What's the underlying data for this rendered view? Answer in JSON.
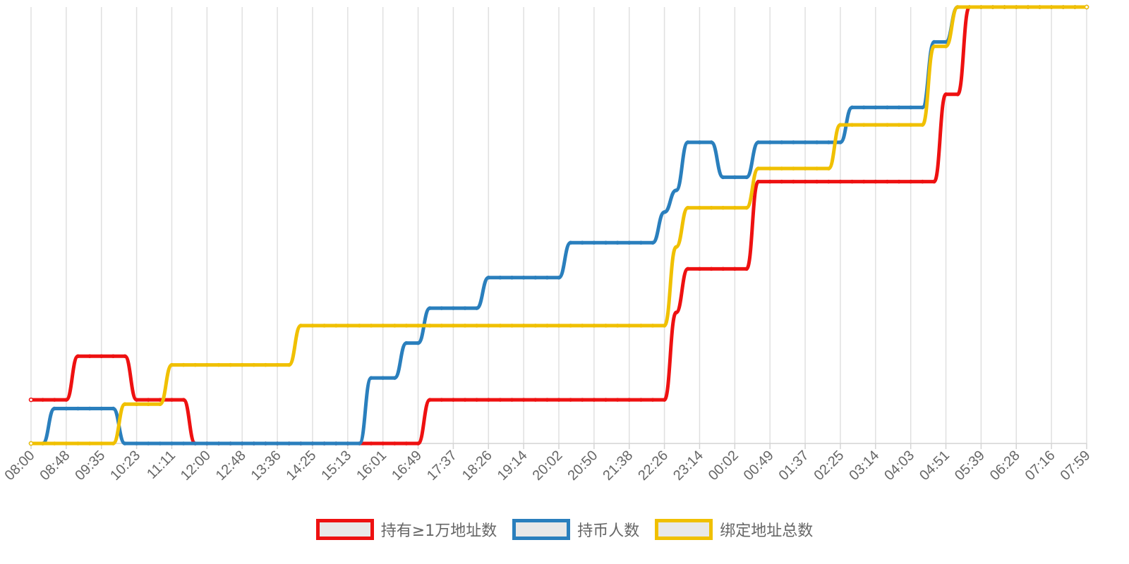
{
  "chart_data": {
    "type": "line",
    "title": "",
    "xlabel": "",
    "ylabel": "",
    "grid": "vertical",
    "y_axis_labels_shown": false,
    "ylim": [
      0,
      100
    ],
    "legend_position": "bottom-center",
    "x_tick_labels": [
      "08:00",
      "08:48",
      "09:35",
      "10:23",
      "11:11",
      "12:00",
      "12:48",
      "13:36",
      "14:25",
      "15:13",
      "16:01",
      "16:49",
      "17:37",
      "18:26",
      "19:14",
      "20:02",
      "20:50",
      "21:38",
      "22:26",
      "23:14",
      "00:02",
      "00:49",
      "01:37",
      "02:25",
      "03:14",
      "04:03",
      "04:51",
      "05:39",
      "06:28",
      "07:16",
      "07:59"
    ],
    "series": [
      {
        "name": "持有≥1万地址数",
        "color": "#ee1111",
        "points": [
          [
            0,
            10
          ],
          [
            3,
            10
          ],
          [
            4,
            20
          ],
          [
            8,
            20
          ],
          [
            9,
            10
          ],
          [
            13,
            10
          ],
          [
            14,
            0
          ],
          [
            33,
            0
          ],
          [
            34,
            10
          ],
          [
            54,
            10
          ],
          [
            55,
            30
          ],
          [
            56,
            40
          ],
          [
            61,
            40
          ],
          [
            62,
            60
          ],
          [
            77,
            60
          ],
          [
            78,
            80
          ],
          [
            79,
            80
          ],
          [
            80,
            100
          ],
          [
            90,
            100
          ]
        ]
      },
      {
        "name": "持币人数",
        "color": "#2a7fbd",
        "points": [
          [
            0,
            0
          ],
          [
            1,
            0
          ],
          [
            2,
            8
          ],
          [
            7,
            8
          ],
          [
            8,
            0
          ],
          [
            14,
            0
          ],
          [
            28,
            0
          ],
          [
            29,
            15
          ],
          [
            31,
            15
          ],
          [
            32,
            23
          ],
          [
            33,
            23
          ],
          [
            34,
            31
          ],
          [
            38,
            31
          ],
          [
            39,
            38
          ],
          [
            45,
            38
          ],
          [
            46,
            46
          ],
          [
            53,
            46
          ],
          [
            54,
            53
          ],
          [
            55,
            58
          ],
          [
            56,
            69
          ],
          [
            58,
            69
          ],
          [
            59,
            61
          ],
          [
            61,
            61
          ],
          [
            62,
            69
          ],
          [
            69,
            69
          ],
          [
            70,
            77
          ],
          [
            76,
            77
          ],
          [
            77,
            92
          ],
          [
            78,
            92
          ],
          [
            79,
            100
          ],
          [
            90,
            100
          ]
        ]
      },
      {
        "name": "绑定地址总数",
        "color": "#f0c000",
        "points": [
          [
            0,
            0
          ],
          [
            7,
            0
          ],
          [
            8,
            9
          ],
          [
            11,
            9
          ],
          [
            12,
            18
          ],
          [
            22,
            18
          ],
          [
            23,
            27
          ],
          [
            54,
            27
          ],
          [
            55,
            45
          ],
          [
            56,
            54
          ],
          [
            61,
            54
          ],
          [
            62,
            63
          ],
          [
            68,
            63
          ],
          [
            69,
            73
          ],
          [
            76,
            73
          ],
          [
            77,
            91
          ],
          [
            78,
            91
          ],
          [
            79,
            100
          ],
          [
            90,
            100
          ]
        ]
      }
    ]
  }
}
